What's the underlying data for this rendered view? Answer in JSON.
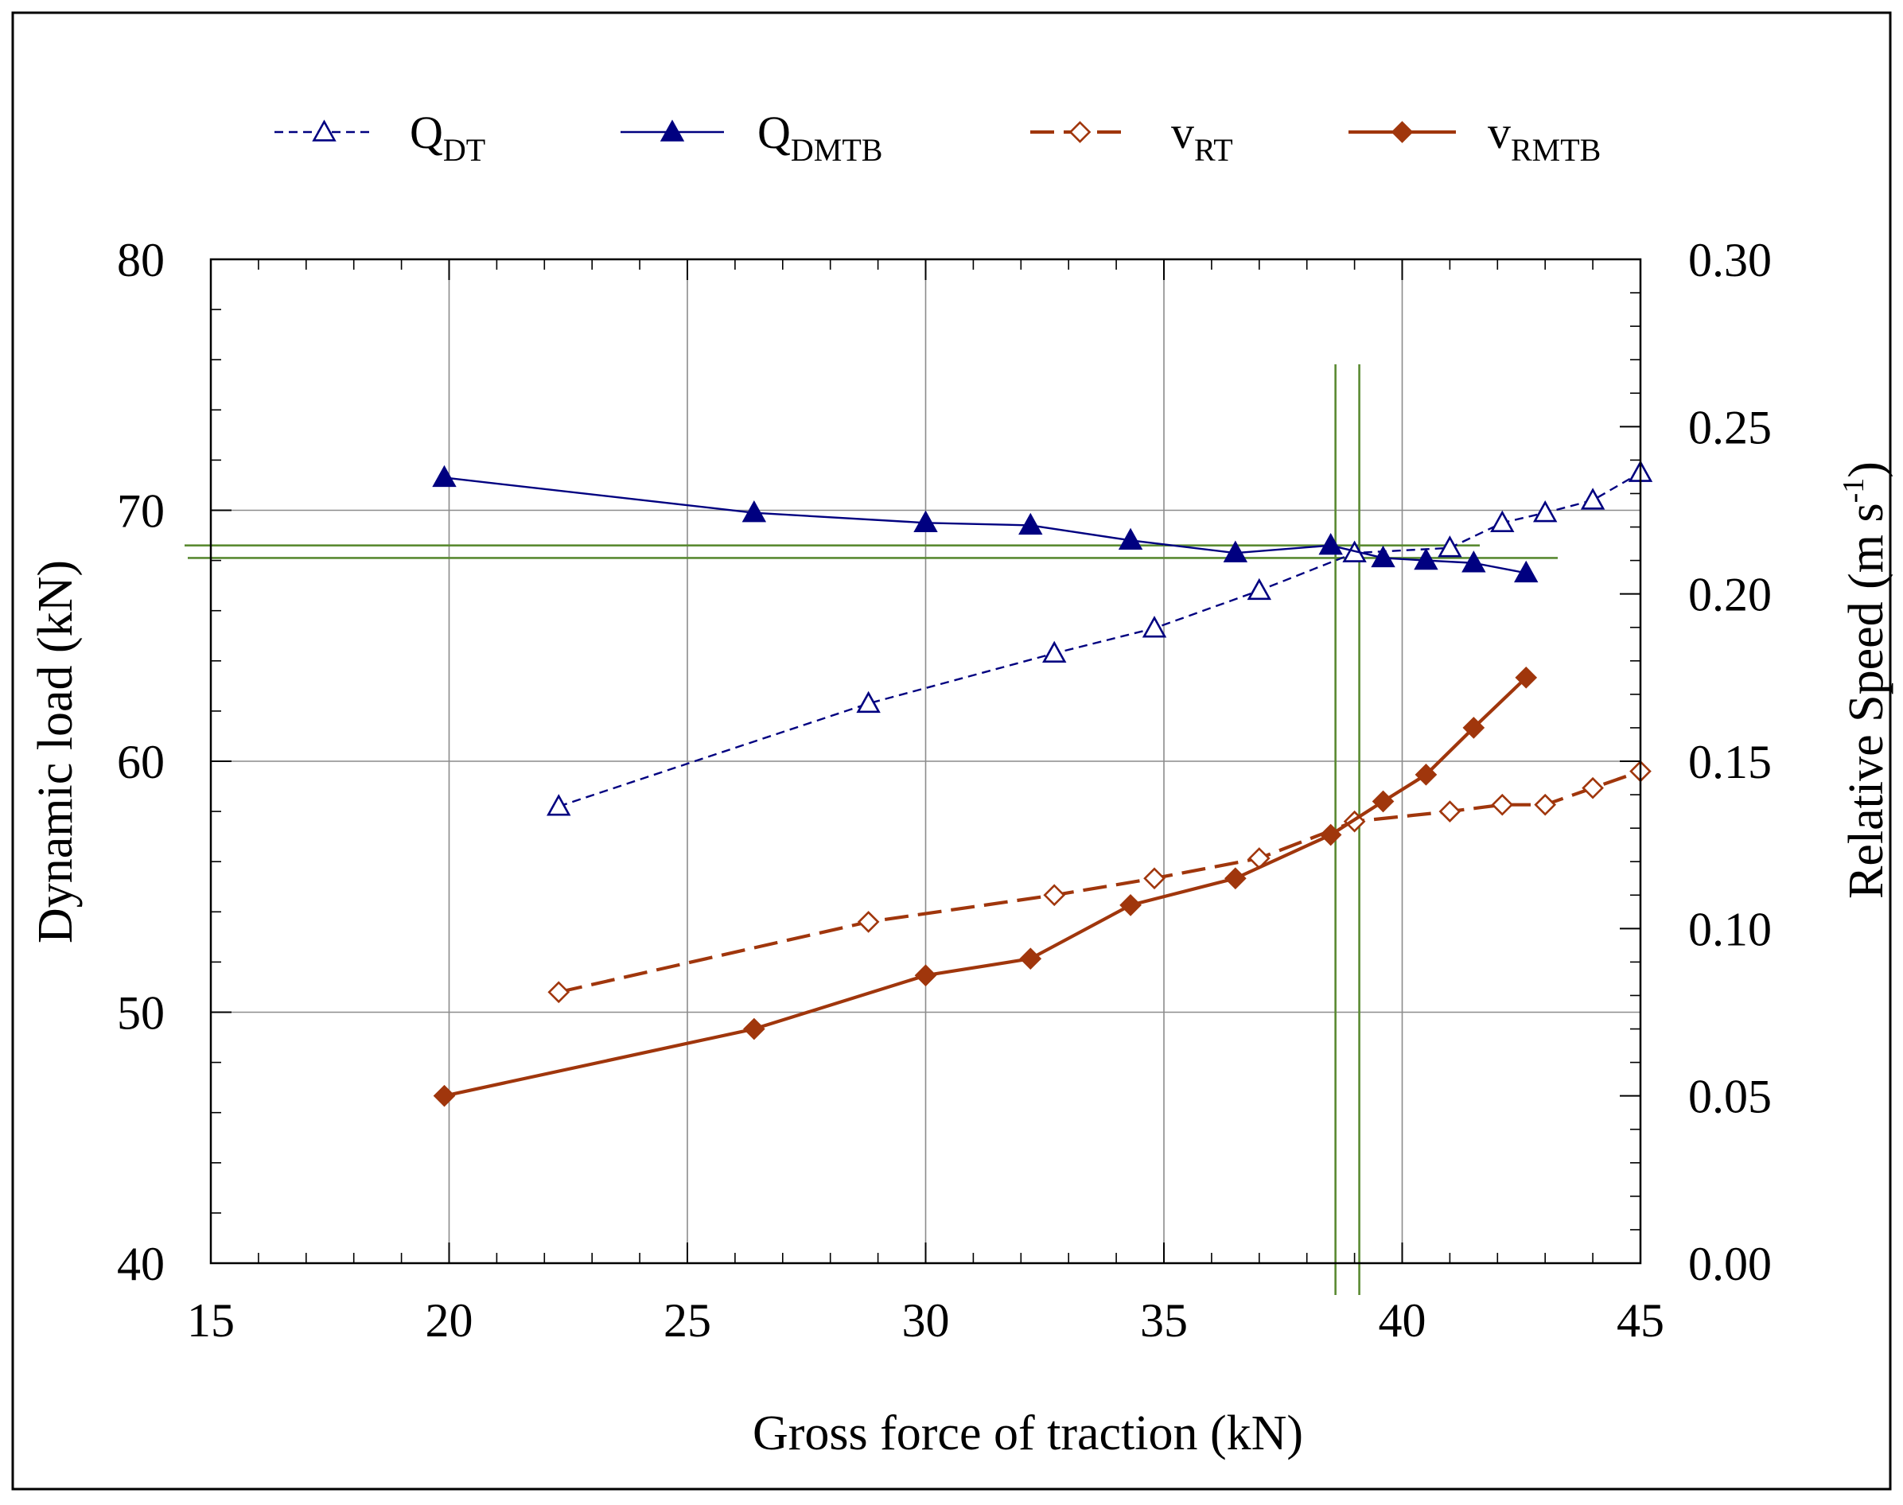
{
  "chart_data": {
    "type": "line",
    "title": "",
    "xlabel": "Gross force of traction (kN)",
    "ylabel_left": "Dynamic load (kN)",
    "ylabel_right": "Relative Speed (m s⁻¹)",
    "ylabel_right_main": "Relative Speed (m s",
    "ylabel_right_sup": "-1",
    "ylabel_right_tail": ")",
    "xlim": [
      15,
      45
    ],
    "ylim_left": [
      40,
      80
    ],
    "ylim_right": [
      0.0,
      0.3
    ],
    "grid": true,
    "legend_position": "top",
    "x_ticks": [
      "15",
      "20",
      "25",
      "30",
      "35",
      "40",
      "45"
    ],
    "y_left_ticks": [
      "40",
      "50",
      "60",
      "70",
      "80"
    ],
    "y_right_ticks": [
      "0.00",
      "0.05",
      "0.10",
      "0.15",
      "0.20",
      "0.25",
      "0.30"
    ],
    "series": [
      {
        "name": "Q_DT",
        "label_main": "Q",
        "label_sub": "DT",
        "axis": "left",
        "color": "#000080",
        "dash": true,
        "marker": "triangle-open",
        "x": [
          22.3,
          28.8,
          32.7,
          34.8,
          37.0,
          39.0,
          41.0,
          42.1,
          43.0,
          44.0,
          45.0
        ],
        "y": [
          58.2,
          62.3,
          64.3,
          65.3,
          66.8,
          68.3,
          68.5,
          69.5,
          69.9,
          70.4,
          71.5
        ]
      },
      {
        "name": "Q_DMTB",
        "label_main": "Q",
        "label_sub": "DMTB",
        "axis": "left",
        "color": "#000080",
        "dash": false,
        "marker": "triangle-filled",
        "x": [
          19.9,
          26.4,
          30.0,
          32.2,
          34.3,
          36.5,
          38.5,
          39.6,
          40.5,
          41.5,
          42.6
        ],
        "y": [
          71.3,
          69.9,
          69.5,
          69.4,
          68.8,
          68.3,
          68.6,
          68.1,
          68.0,
          67.9,
          67.5
        ]
      },
      {
        "name": "v_RT",
        "label_main": "v",
        "label_sub": "RT",
        "axis": "right",
        "color": "#a0360c",
        "dash": true,
        "marker": "diamond-open",
        "x": [
          22.3,
          28.8,
          32.7,
          34.8,
          37.0,
          39.0,
          41.0,
          42.1,
          43.0,
          44.0,
          45.0
        ],
        "y": [
          0.081,
          0.102,
          0.11,
          0.115,
          0.121,
          0.132,
          0.135,
          0.137,
          0.137,
          0.142,
          0.147
        ]
      },
      {
        "name": "v_RMTB",
        "label_main": "v",
        "label_sub": "RMTB",
        "axis": "right",
        "color": "#a0360c",
        "dash": false,
        "marker": "diamond-filled",
        "x": [
          19.9,
          26.4,
          30.0,
          32.2,
          34.3,
          36.5,
          38.5,
          39.6,
          40.5,
          41.5,
          42.6
        ],
        "y": [
          0.05,
          0.07,
          0.086,
          0.091,
          0.107,
          0.115,
          0.128,
          0.138,
          0.146,
          0.16,
          0.175
        ]
      }
    ],
    "reference_lines": {
      "color": "#5a8a32",
      "horizontal_left_y": [
        68.6,
        68.1
      ],
      "vertical_x": [
        38.6,
        39.1
      ]
    }
  }
}
